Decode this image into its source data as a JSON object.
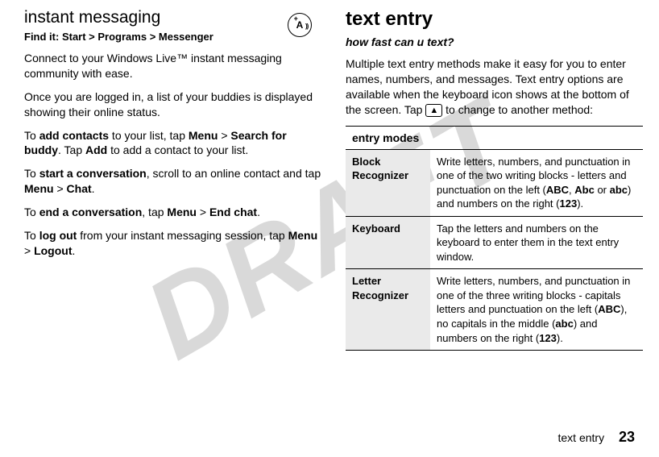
{
  "watermark": "DRAFT",
  "left": {
    "heading": "instant messaging",
    "findit_label": "Find it:",
    "findit_path": "Start > Programs > Messenger",
    "p1": "Connect to your Windows Live™ instant messaging community with ease.",
    "p2": "Once you are logged in, a list of your buddies is displayed showing their online status.",
    "p3a": "To ",
    "p3b": "add contacts",
    "p3c": " to your list, tap ",
    "p3d": "Menu",
    "p3e": " > ",
    "p3f": "Search for buddy",
    "p3g": ". Tap ",
    "p3h": "Add",
    "p3i": " to add a contact to your list.",
    "p4a": "To ",
    "p4b": "start a conversation",
    "p4c": ", scroll to an online contact and tap ",
    "p4d": "Menu",
    "p4e": " > ",
    "p4f": "Chat",
    "p4g": ".",
    "p5a": "To ",
    "p5b": "end a conversation",
    "p5c": ", tap ",
    "p5d": "Menu",
    "p5e": " > ",
    "p5f": "End chat",
    "p5g": ".",
    "p6a": "To ",
    "p6b": "log out",
    "p6c": " from your instant messaging session, tap ",
    "p6d": "Menu",
    "p6e": " > ",
    "p6f": "Logout",
    "p6g": "."
  },
  "right": {
    "heading": "text entry",
    "subtitle": "how fast can u text?",
    "intro_a": "Multiple text entry methods make it easy for you to enter names, numbers, and messages. Text entry options are available when the keyboard icon shows at the bottom of the screen. Tap ",
    "intro_b": " to change to another method:",
    "keycap": "▲",
    "table_header": "entry modes",
    "row1_mode": "Block Recognizer",
    "row1a": "Write letters, numbers, and punctuation in one of the two writing blocks - letters and punctuation on the left (",
    "row1b": "ABC",
    "row1c": ", ",
    "row1d": "Abc",
    "row1e": "  or ",
    "row1f": "abc",
    "row1g": ") and numbers on the right (",
    "row1h": "123",
    "row1i": ").",
    "row2_mode": "Keyboard",
    "row2": "Tap the letters and numbers on the keyboard to enter them in the text entry window.",
    "row3_mode": "Letter Recognizer",
    "row3a": "Write letters, numbers, and punctuation in one of the three writing blocks - capitals letters and punctuation on the left (",
    "row3b": "ABC",
    "row3c": "), no capitals in the middle (",
    "row3d": "abc",
    "row3e": ") and numbers on the right (",
    "row3f": "123",
    "row3g": ")."
  },
  "footer": {
    "section": "text entry",
    "page": "23"
  },
  "icon": {
    "letter": "A",
    "plus": "+"
  }
}
